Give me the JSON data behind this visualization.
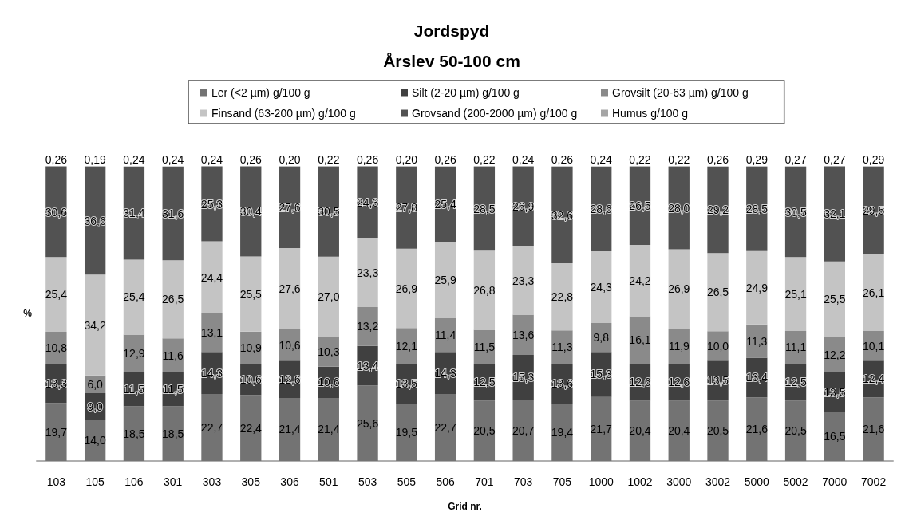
{
  "chart_data": {
    "type": "bar",
    "title": "Jordspyd",
    "subtitle": "Årslev 50-100 cm",
    "xlabel": "Grid nr.",
    "ylabel": "%",
    "categories": [
      "103",
      "105",
      "106",
      "301",
      "303",
      "305",
      "306",
      "501",
      "503",
      "505",
      "506",
      "701",
      "703",
      "705",
      "1000",
      "1002",
      "3000",
      "3002",
      "5000",
      "5002",
      "7000",
      "7002"
    ],
    "stacked": true,
    "legend": "top",
    "tick_labels": "x",
    "series": [
      {
        "name": "Ler (<2 µm) g/100 g",
        "color": "#737373",
        "values": [
          19.7,
          14.0,
          18.5,
          18.5,
          22.7,
          22.4,
          21.4,
          21.4,
          25.6,
          19.5,
          22.7,
          20.5,
          20.7,
          19.4,
          21.7,
          20.4,
          20.4,
          20.5,
          21.6,
          20.5,
          16.5,
          21.6
        ],
        "value_labels": [
          "19,7",
          "14,0",
          "18,5",
          "18,5",
          "22,7",
          "22,4",
          "21,4",
          "21,4",
          "25,6",
          "19,5",
          "22,7",
          "20,5",
          "20,7",
          "19,4",
          "21,7",
          "20,4",
          "20,4",
          "20,5",
          "21,6",
          "20,5",
          "16,5",
          "21,6"
        ]
      },
      {
        "name": "Silt (2-20 µm) g/100 g",
        "color": "#404040",
        "values": [
          13.3,
          9.0,
          11.5,
          11.5,
          14.3,
          10.6,
          12.6,
          10.6,
          13.4,
          13.5,
          14.3,
          12.5,
          15.3,
          13.6,
          15.3,
          12.6,
          12.6,
          13.5,
          13.4,
          12.5,
          13.5,
          12.4
        ],
        "value_labels": [
          "13,3",
          "9,0",
          "11,5",
          "11,5",
          "14,3",
          "10,6",
          "12,6",
          "10,6",
          "13,4",
          "13,5",
          "14,3",
          "12,5",
          "15,3",
          "13,6",
          "15,3",
          "12,6",
          "12,6",
          "13,5",
          "13,4",
          "12,5",
          "13,5",
          "12,4"
        ]
      },
      {
        "name": "Grovsilt (20-63 µm) g/100 g",
        "color": "#8a8a8a",
        "values": [
          10.8,
          6.0,
          12.9,
          11.6,
          13.1,
          10.9,
          10.6,
          10.3,
          13.2,
          12.1,
          11.4,
          11.5,
          13.6,
          11.3,
          9.8,
          16.1,
          11.9,
          10.0,
          11.3,
          11.1,
          12.2,
          10.1
        ],
        "value_labels": [
          "10,8",
          "6,0",
          "12,9",
          "11,6",
          "13,1",
          "10,9",
          "10,6",
          "10,3",
          "13,2",
          "12,1",
          "11,4",
          "11,5",
          "13,6",
          "11,3",
          "9,8",
          "16,1",
          "11,9",
          "10,0",
          "11,3",
          "11,1",
          "12,2",
          "10,1"
        ]
      },
      {
        "name": "Finsand (63-200 µm) g/100 g",
        "color": "#c4c4c4",
        "values": [
          25.4,
          34.2,
          25.4,
          26.5,
          24.4,
          25.5,
          27.6,
          27.0,
          23.3,
          26.9,
          25.9,
          26.8,
          23.3,
          22.8,
          24.3,
          24.2,
          26.9,
          26.5,
          24.9,
          25.1,
          25.5,
          26.1
        ],
        "value_labels": [
          "25,4",
          "34,2",
          "25,4",
          "26,5",
          "24,4",
          "25,5",
          "27,6",
          "27,0",
          "23,3",
          "26,9",
          "25,9",
          "26,8",
          "23,3",
          "22,8",
          "24,3",
          "24,2",
          "26,9",
          "26,5",
          "24,9",
          "25,1",
          "25,5",
          "26,1"
        ]
      },
      {
        "name": "Grovsand (200-2000 µm) g/100 g",
        "color": "#525252",
        "values": [
          30.6,
          36.6,
          31.4,
          31.6,
          25.3,
          30.4,
          27.6,
          30.5,
          24.3,
          27.8,
          25.4,
          28.5,
          26.9,
          32.6,
          28.6,
          26.5,
          28.0,
          29.2,
          28.5,
          30.5,
          32.1,
          29.5
        ],
        "value_labels": [
          "30,6",
          "36,6",
          "31,4",
          "31,6",
          "25,3",
          "30,4",
          "27,6",
          "30,5",
          "24,3",
          "27,8",
          "25,4",
          "28,5",
          "26,9",
          "32,6",
          "28,6",
          "26,5",
          "28,0",
          "29,2",
          "28,5",
          "30,5",
          "32,1",
          "29,5"
        ]
      },
      {
        "name": "Humus g/100 g",
        "color": "#a5a5a5",
        "values": [
          0.26,
          0.19,
          0.24,
          0.24,
          0.24,
          0.26,
          0.2,
          0.22,
          0.26,
          0.2,
          0.26,
          0.22,
          0.24,
          0.26,
          0.24,
          0.22,
          0.22,
          0.26,
          0.29,
          0.27,
          0.27,
          0.29
        ],
        "value_labels": [
          "0,26",
          "0,19",
          "0,24",
          "0,24",
          "0,24",
          "0,26",
          "0,20",
          "0,22",
          "0,26",
          "0,20",
          "0,26",
          "0,22",
          "0,24",
          "0,26",
          "0,24",
          "0,22",
          "0,22",
          "0,26",
          "0,29",
          "0,27",
          "0,27",
          "0,29"
        ]
      }
    ]
  }
}
